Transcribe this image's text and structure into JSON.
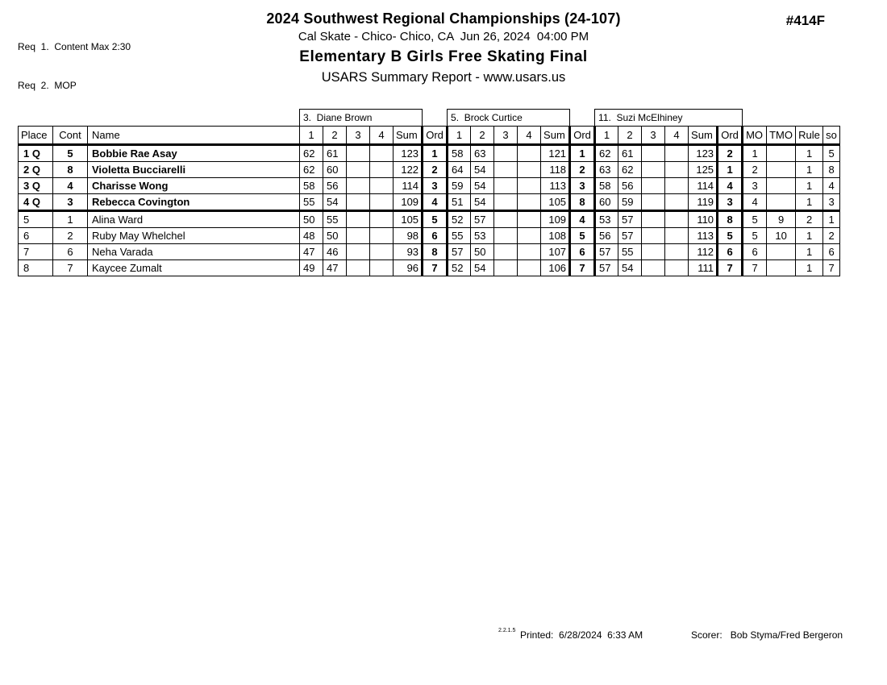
{
  "report": {
    "req_lines": [
      "Req  1.  Content Max 2:30",
      "Req  2.  MOP"
    ],
    "title": "2024 Southwest Regional Championships (24-107)",
    "venue_line": "Cal Skate - Chico- Chico, CA  Jun 26, 2024  04:00 PM",
    "event_title": "Elementary B Girls Free Skating Final",
    "subtitle": "USARS Summary Report - www.usars.us",
    "event_number": "#414F"
  },
  "table": {
    "judges": [
      "3.  Diane Brown",
      "5.  Brock Curtice",
      "11.  Suzi McElhiney"
    ],
    "columns": {
      "place": "Place",
      "cont": "Cont",
      "name": "Name",
      "trial_cols": [
        "1",
        "2",
        "3",
        "4"
      ],
      "sum": "Sum",
      "ord": "Ord",
      "mo": "MO",
      "tmo": "TMO",
      "rule": "Rule",
      "so": "so"
    },
    "cutoff_after": 4,
    "rows": [
      {
        "place": "1 Q",
        "cont": "5",
        "name": "Bobbie Rae Asay",
        "qualified": true,
        "judges": [
          [
            "62",
            "61",
            "",
            "",
            "123",
            "1"
          ],
          [
            "58",
            "63",
            "",
            "",
            "121",
            "1"
          ],
          [
            "62",
            "61",
            "",
            "",
            "123",
            "2"
          ]
        ],
        "mo": "1",
        "tmo": "",
        "rule": "1",
        "so": "5"
      },
      {
        "place": "2 Q",
        "cont": "8",
        "name": "Violetta Bucciarelli",
        "qualified": true,
        "judges": [
          [
            "62",
            "60",
            "",
            "",
            "122",
            "2"
          ],
          [
            "64",
            "54",
            "",
            "",
            "118",
            "2"
          ],
          [
            "63",
            "62",
            "",
            "",
            "125",
            "1"
          ]
        ],
        "mo": "2",
        "tmo": "",
        "rule": "1",
        "so": "8"
      },
      {
        "place": "3 Q",
        "cont": "4",
        "name": "Charisse Wong",
        "qualified": true,
        "judges": [
          [
            "58",
            "56",
            "",
            "",
            "114",
            "3"
          ],
          [
            "59",
            "54",
            "",
            "",
            "113",
            "3"
          ],
          [
            "58",
            "56",
            "",
            "",
            "114",
            "4"
          ]
        ],
        "mo": "3",
        "tmo": "",
        "rule": "1",
        "so": "4"
      },
      {
        "place": "4 Q",
        "cont": "3",
        "name": "Rebecca Covington",
        "qualified": true,
        "judges": [
          [
            "55",
            "54",
            "",
            "",
            "109",
            "4"
          ],
          [
            "51",
            "54",
            "",
            "",
            "105",
            "8"
          ],
          [
            "60",
            "59",
            "",
            "",
            "119",
            "3"
          ]
        ],
        "mo": "4",
        "tmo": "",
        "rule": "1",
        "so": "3"
      },
      {
        "place": "5",
        "cont": "1",
        "name": "Alina Ward",
        "qualified": false,
        "judges": [
          [
            "50",
            "55",
            "",
            "",
            "105",
            "5"
          ],
          [
            "52",
            "57",
            "",
            "",
            "109",
            "4"
          ],
          [
            "53",
            "57",
            "",
            "",
            "110",
            "8"
          ]
        ],
        "mo": "5",
        "tmo": "9",
        "rule": "2",
        "so": "1"
      },
      {
        "place": "6",
        "cont": "2",
        "name": "Ruby May Whelchel",
        "qualified": false,
        "judges": [
          [
            "48",
            "50",
            "",
            "",
            "98",
            "6"
          ],
          [
            "55",
            "53",
            "",
            "",
            "108",
            "5"
          ],
          [
            "56",
            "57",
            "",
            "",
            "113",
            "5"
          ]
        ],
        "mo": "5",
        "tmo": "10",
        "rule": "1",
        "so": "2"
      },
      {
        "place": "7",
        "cont": "6",
        "name": "Neha Varada",
        "qualified": false,
        "judges": [
          [
            "47",
            "46",
            "",
            "",
            "93",
            "8"
          ],
          [
            "57",
            "50",
            "",
            "",
            "107",
            "6"
          ],
          [
            "57",
            "55",
            "",
            "",
            "112",
            "6"
          ]
        ],
        "mo": "6",
        "tmo": "",
        "rule": "1",
        "so": "6"
      },
      {
        "place": "8",
        "cont": "7",
        "name": "Kaycee Zumalt",
        "qualified": false,
        "judges": [
          [
            "49",
            "47",
            "",
            "",
            "96",
            "7"
          ],
          [
            "52",
            "54",
            "",
            "",
            "106",
            "7"
          ],
          [
            "57",
            "54",
            "",
            "",
            "111",
            "7"
          ]
        ],
        "mo": "7",
        "tmo": "",
        "rule": "1",
        "so": "7"
      }
    ]
  },
  "footer": {
    "version": "2.2.1.5",
    "printed_label": "Printed:",
    "printed_value": "6/28/2024  6:33 AM",
    "scorer_label": "Scorer:",
    "scorer_value": "Bob Styma/Fred Bergeron"
  }
}
